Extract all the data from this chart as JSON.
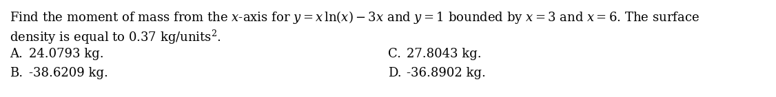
{
  "background_color": "#ffffff",
  "figsize": [
    11.26,
    1.42
  ],
  "dpi": 100,
  "line1": "Find the moment of mass from the $x$-axis for $y = x\\,\\ln(x) - 3x$ and $y = 1$ bounded by $x = 3$ and $x = 6$. The surface",
  "line2": "density is equal to 0.37 kg/units$^{2}$.",
  "option_A_label": "A.",
  "option_A_value": "24.0793 kg.",
  "option_B_label": "B.",
  "option_B_value": "-38.6209 kg.",
  "option_C_label": "C.",
  "option_C_value": "27.8043 kg.",
  "option_D_label": "D.",
  "option_D_value": "-36.8902 kg.",
  "font_size": 13.0,
  "text_color": "#000000",
  "font_family": "DejaVu Serif"
}
